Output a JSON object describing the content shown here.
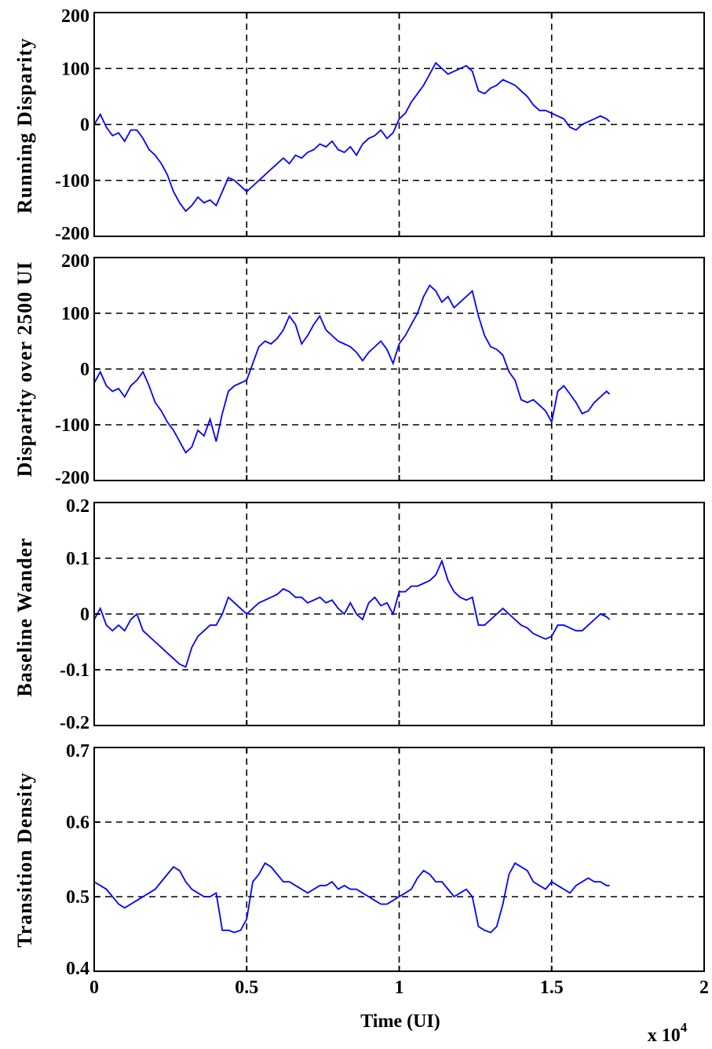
{
  "chart_data": [
    {
      "type": "line",
      "ylabel": "Running  Disparity",
      "xlim": [
        0,
        2
      ],
      "ylim": [
        -200,
        200
      ],
      "yticks": [
        "-200",
        "-100",
        "0",
        "100",
        "200"
      ],
      "ytick_values": [
        -200,
        -100,
        0,
        100,
        200
      ],
      "grid": true,
      "series": [
        {
          "color": "#0000ff",
          "x": [
            0,
            0.02,
            0.04,
            0.06,
            0.08,
            0.1,
            0.12,
            0.14,
            0.16,
            0.18,
            0.2,
            0.22,
            0.24,
            0.26,
            0.28,
            0.3,
            0.32,
            0.34,
            0.36,
            0.38,
            0.4,
            0.42,
            0.44,
            0.46,
            0.48,
            0.5,
            0.52,
            0.54,
            0.56,
            0.58,
            0.6,
            0.62,
            0.64,
            0.66,
            0.68,
            0.7,
            0.72,
            0.74,
            0.76,
            0.78,
            0.8,
            0.82,
            0.84,
            0.86,
            0.88,
            0.9,
            0.92,
            0.94,
            0.96,
            0.98,
            1.0,
            1.02,
            1.04,
            1.06,
            1.08,
            1.1,
            1.12,
            1.14,
            1.16,
            1.18,
            1.2,
            1.22,
            1.24,
            1.26,
            1.28,
            1.3,
            1.32,
            1.34,
            1.36,
            1.38,
            1.4,
            1.42,
            1.44,
            1.46,
            1.48,
            1.5,
            1.52,
            1.54,
            1.56,
            1.58,
            1.6,
            1.62,
            1.64,
            1.66,
            1.68,
            1.69
          ],
          "y": [
            0,
            18,
            -5,
            -20,
            -15,
            -30,
            -10,
            -10,
            -25,
            -45,
            -55,
            -70,
            -90,
            -120,
            -140,
            -155,
            -145,
            -130,
            -140,
            -135,
            -145,
            -120,
            -95,
            -100,
            -110,
            -120,
            -110,
            -100,
            -90,
            -80,
            -70,
            -60,
            -70,
            -55,
            -60,
            -50,
            -45,
            -35,
            -40,
            -30,
            -45,
            -50,
            -40,
            -55,
            -35,
            -25,
            -20,
            -10,
            -25,
            -15,
            10,
            20,
            40,
            55,
            70,
            90,
            110,
            100,
            90,
            95,
            100,
            105,
            95,
            60,
            55,
            65,
            70,
            80,
            75,
            70,
            60,
            50,
            35,
            25,
            25,
            20,
            15,
            10,
            -5,
            -10,
            0,
            5,
            10,
            15,
            10,
            5
          ]
        }
      ]
    },
    {
      "type": "line",
      "ylabel": "Disparity over 2500 UI",
      "xlim": [
        0,
        2
      ],
      "ylim": [
        -200,
        200
      ],
      "yticks": [
        "-200",
        "-100",
        "0",
        "100",
        "200"
      ],
      "ytick_values": [
        -200,
        -100,
        0,
        100,
        200
      ],
      "grid": true,
      "series": [
        {
          "color": "#0000ff",
          "x": [
            0,
            0.02,
            0.04,
            0.06,
            0.08,
            0.1,
            0.12,
            0.14,
            0.16,
            0.18,
            0.2,
            0.22,
            0.24,
            0.26,
            0.28,
            0.3,
            0.32,
            0.34,
            0.36,
            0.38,
            0.4,
            0.42,
            0.44,
            0.46,
            0.48,
            0.5,
            0.52,
            0.54,
            0.56,
            0.58,
            0.6,
            0.62,
            0.64,
            0.66,
            0.68,
            0.7,
            0.72,
            0.74,
            0.76,
            0.78,
            0.8,
            0.82,
            0.84,
            0.86,
            0.88,
            0.9,
            0.92,
            0.94,
            0.96,
            0.98,
            1.0,
            1.02,
            1.04,
            1.06,
            1.08,
            1.1,
            1.12,
            1.14,
            1.16,
            1.18,
            1.2,
            1.22,
            1.24,
            1.26,
            1.28,
            1.3,
            1.32,
            1.34,
            1.36,
            1.38,
            1.4,
            1.42,
            1.44,
            1.46,
            1.48,
            1.5,
            1.52,
            1.54,
            1.56,
            1.58,
            1.6,
            1.62,
            1.64,
            1.66,
            1.68,
            1.69
          ],
          "y": [
            -25,
            -5,
            -30,
            -40,
            -35,
            -50,
            -30,
            -20,
            -5,
            -30,
            -60,
            -75,
            -95,
            -110,
            -130,
            -150,
            -140,
            -110,
            -120,
            -90,
            -130,
            -80,
            -40,
            -30,
            -25,
            -20,
            10,
            40,
            50,
            45,
            55,
            70,
            95,
            80,
            45,
            60,
            80,
            95,
            70,
            60,
            50,
            45,
            40,
            30,
            15,
            30,
            40,
            50,
            35,
            10,
            45,
            60,
            80,
            100,
            130,
            150,
            140,
            120,
            130,
            110,
            120,
            130,
            140,
            95,
            60,
            40,
            35,
            25,
            -5,
            -20,
            -55,
            -60,
            -55,
            -65,
            -75,
            -95,
            -40,
            -30,
            -45,
            -60,
            -80,
            -75,
            -60,
            -50,
            -40,
            -45
          ]
        }
      ]
    },
    {
      "type": "line",
      "ylabel": "Baseline Wander",
      "xlim": [
        0,
        2
      ],
      "ylim": [
        -0.2,
        0.2
      ],
      "yticks": [
        "-0.2",
        "-0.1",
        "0",
        "0.1",
        "0.2"
      ],
      "ytick_values": [
        -0.2,
        -0.1,
        0,
        0.1,
        0.2
      ],
      "grid": true,
      "series": [
        {
          "color": "#0000ff",
          "x": [
            0,
            0.02,
            0.04,
            0.06,
            0.08,
            0.1,
            0.12,
            0.14,
            0.16,
            0.18,
            0.2,
            0.22,
            0.24,
            0.26,
            0.28,
            0.3,
            0.32,
            0.34,
            0.36,
            0.38,
            0.4,
            0.42,
            0.44,
            0.46,
            0.48,
            0.5,
            0.52,
            0.54,
            0.56,
            0.58,
            0.6,
            0.62,
            0.64,
            0.66,
            0.68,
            0.7,
            0.72,
            0.74,
            0.76,
            0.78,
            0.8,
            0.82,
            0.84,
            0.86,
            0.88,
            0.9,
            0.92,
            0.94,
            0.96,
            0.98,
            1.0,
            1.02,
            1.04,
            1.06,
            1.08,
            1.1,
            1.12,
            1.14,
            1.16,
            1.18,
            1.2,
            1.22,
            1.24,
            1.26,
            1.28,
            1.3,
            1.32,
            1.34,
            1.36,
            1.38,
            1.4,
            1.42,
            1.44,
            1.46,
            1.48,
            1.5,
            1.52,
            1.54,
            1.56,
            1.58,
            1.6,
            1.62,
            1.64,
            1.66,
            1.68,
            1.69
          ],
          "y": [
            -0.01,
            0.01,
            -0.02,
            -0.03,
            -0.02,
            -0.03,
            -0.01,
            0.0,
            -0.03,
            -0.04,
            -0.05,
            -0.06,
            -0.07,
            -0.08,
            -0.09,
            -0.095,
            -0.06,
            -0.04,
            -0.03,
            -0.02,
            -0.02,
            0.0,
            0.03,
            0.02,
            0.01,
            0.0,
            0.01,
            0.02,
            0.025,
            0.03,
            0.035,
            0.045,
            0.04,
            0.03,
            0.03,
            0.02,
            0.025,
            0.03,
            0.02,
            0.025,
            0.01,
            0.0,
            0.02,
            0.0,
            -0.01,
            0.02,
            0.03,
            0.015,
            0.02,
            0.0,
            0.04,
            0.04,
            0.05,
            0.05,
            0.055,
            0.06,
            0.07,
            0.095,
            0.06,
            0.04,
            0.03,
            0.025,
            0.03,
            -0.02,
            -0.02,
            -0.01,
            0.0,
            0.01,
            0.0,
            -0.01,
            -0.02,
            -0.025,
            -0.035,
            -0.04,
            -0.045,
            -0.04,
            -0.02,
            -0.02,
            -0.025,
            -0.03,
            -0.03,
            -0.02,
            -0.01,
            0.0,
            -0.005,
            -0.01
          ]
        }
      ]
    },
    {
      "type": "line",
      "ylabel": "Transition Density",
      "xlabel": "Time  (UI)",
      "x_multiplier": "x 10",
      "x_multiplier_exp": "4",
      "xlim": [
        0,
        2
      ],
      "xticks": [
        "0",
        "0.5",
        "1",
        "1.5",
        "2"
      ],
      "xtick_values": [
        0,
        0.5,
        1,
        1.5,
        2
      ],
      "ylim": [
        0.4,
        0.7
      ],
      "yticks": [
        "0.4",
        "0.5",
        "0.6",
        "0.7"
      ],
      "ytick_values": [
        0.4,
        0.5,
        0.6,
        0.7
      ],
      "grid": true,
      "series": [
        {
          "color": "#0000ff",
          "x": [
            0,
            0.02,
            0.04,
            0.06,
            0.08,
            0.1,
            0.12,
            0.14,
            0.16,
            0.18,
            0.2,
            0.22,
            0.24,
            0.26,
            0.28,
            0.3,
            0.32,
            0.34,
            0.36,
            0.38,
            0.4,
            0.42,
            0.44,
            0.46,
            0.48,
            0.5,
            0.52,
            0.54,
            0.56,
            0.58,
            0.6,
            0.62,
            0.64,
            0.66,
            0.68,
            0.7,
            0.72,
            0.74,
            0.76,
            0.78,
            0.8,
            0.82,
            0.84,
            0.86,
            0.88,
            0.9,
            0.92,
            0.94,
            0.96,
            0.98,
            1.0,
            1.02,
            1.04,
            1.06,
            1.08,
            1.1,
            1.12,
            1.14,
            1.16,
            1.18,
            1.2,
            1.22,
            1.24,
            1.26,
            1.28,
            1.3,
            1.32,
            1.34,
            1.36,
            1.38,
            1.4,
            1.42,
            1.44,
            1.46,
            1.48,
            1.5,
            1.52,
            1.54,
            1.56,
            1.58,
            1.6,
            1.62,
            1.64,
            1.66,
            1.68,
            1.69
          ],
          "y": [
            0.52,
            0.515,
            0.51,
            0.5,
            0.49,
            0.485,
            0.49,
            0.495,
            0.5,
            0.505,
            0.51,
            0.52,
            0.53,
            0.54,
            0.535,
            0.52,
            0.51,
            0.505,
            0.5,
            0.5,
            0.505,
            0.455,
            0.455,
            0.452,
            0.455,
            0.47,
            0.52,
            0.53,
            0.545,
            0.54,
            0.53,
            0.52,
            0.52,
            0.515,
            0.51,
            0.505,
            0.51,
            0.515,
            0.515,
            0.52,
            0.51,
            0.515,
            0.51,
            0.51,
            0.505,
            0.5,
            0.495,
            0.49,
            0.49,
            0.495,
            0.5,
            0.505,
            0.51,
            0.525,
            0.535,
            0.53,
            0.52,
            0.52,
            0.51,
            0.5,
            0.505,
            0.51,
            0.5,
            0.46,
            0.455,
            0.452,
            0.46,
            0.49,
            0.53,
            0.545,
            0.54,
            0.535,
            0.52,
            0.515,
            0.51,
            0.52,
            0.515,
            0.51,
            0.505,
            0.515,
            0.52,
            0.525,
            0.52,
            0.52,
            0.515,
            0.515
          ]
        }
      ]
    }
  ]
}
